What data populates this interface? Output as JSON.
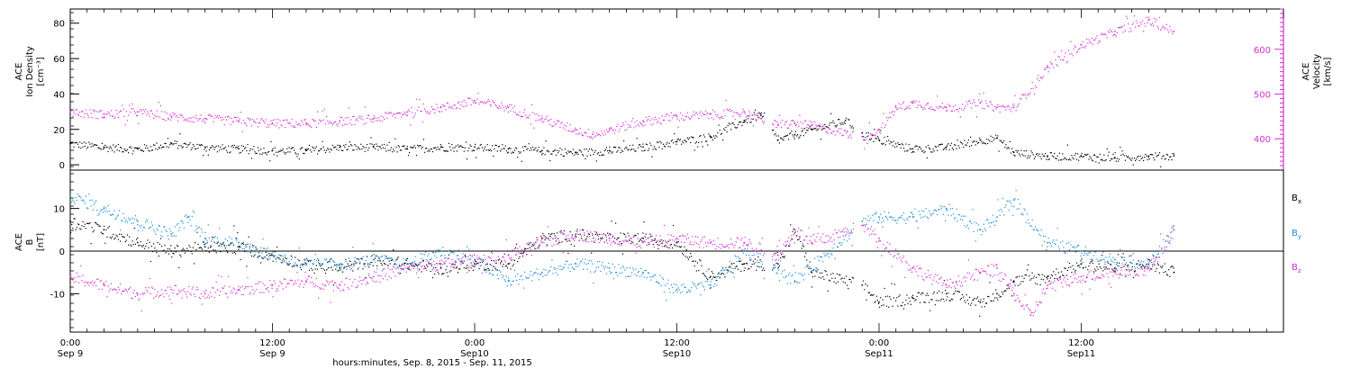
{
  "figure": {
    "xlabel": "hours:minutes, Sep. 8, 2015 - Sep. 11, 2015",
    "xticks": [
      {
        "t": 0,
        "time": "0:00",
        "date": "Sep 9"
      },
      {
        "t": 12,
        "time": "12:00",
        "date": "Sep 9"
      },
      {
        "t": 24,
        "time": "0:00",
        "date": "Sep10"
      },
      {
        "t": 36,
        "time": "12:00",
        "date": "Sep10"
      },
      {
        "t": 48,
        "time": "0:00",
        "date": "Sep11"
      },
      {
        "t": 60,
        "time": "12:00",
        "date": "Sep11"
      }
    ],
    "xlim": [
      0,
      72
    ]
  },
  "chart_data": [
    {
      "type": "scatter",
      "panel": "top",
      "left_axis": {
        "label_lines": [
          "ACE",
          "Ion Density",
          "[cm⁻³]"
        ],
        "ylim": [
          -3,
          88
        ],
        "ticks": [
          0,
          20,
          40,
          60,
          80
        ]
      },
      "right_axis": {
        "label_lines": [
          "ACE",
          "Velocity",
          "[km/s]"
        ],
        "ylim": [
          330,
          690
        ],
        "ticks": [
          400,
          500,
          600
        ],
        "color": "#d42ed4"
      },
      "series": [
        {
          "name": "Ion Density",
          "axis": "left",
          "color": "#000000",
          "points": [
            [
              0,
              12
            ],
            [
              2,
              10
            ],
            [
              4,
              9
            ],
            [
              6,
              12
            ],
            [
              8,
              10
            ],
            [
              10,
              9
            ],
            [
              12,
              8
            ],
            [
              14,
              8
            ],
            [
              16,
              10
            ],
            [
              18,
              10
            ],
            [
              20,
              9
            ],
            [
              22,
              10
            ],
            [
              24,
              10
            ],
            [
              26,
              9
            ],
            [
              28,
              8
            ],
            [
              30,
              7
            ],
            [
              32,
              8
            ],
            [
              34,
              10
            ],
            [
              36,
              13
            ],
            [
              38,
              16
            ],
            [
              40,
              25
            ],
            [
              41,
              28
            ],
            [
              42,
              14
            ],
            [
              43,
              17
            ],
            [
              44,
              20
            ],
            [
              46,
              25
            ],
            [
              47,
              18
            ],
            [
              48,
              14
            ],
            [
              50,
              9
            ],
            [
              52,
              10
            ],
            [
              54,
              14
            ],
            [
              55,
              15
            ],
            [
              56,
              7
            ],
            [
              58,
              5
            ],
            [
              60,
              5
            ],
            [
              62,
              4
            ],
            [
              64,
              5
            ],
            [
              65.5,
              5
            ]
          ]
        },
        {
          "name": "Velocity",
          "axis": "right",
          "color": "#d42ed4",
          "points": [
            [
              0,
              460
            ],
            [
              2,
              455
            ],
            [
              4,
              460
            ],
            [
              6,
              450
            ],
            [
              8,
              445
            ],
            [
              10,
              440
            ],
            [
              12,
              435
            ],
            [
              14,
              435
            ],
            [
              16,
              440
            ],
            [
              18,
              445
            ],
            [
              20,
              460
            ],
            [
              22,
              470
            ],
            [
              24,
              485
            ],
            [
              26,
              470
            ],
            [
              28,
              445
            ],
            [
              30,
              420
            ],
            [
              31,
              410
            ],
            [
              32,
              420
            ],
            [
              34,
              440
            ],
            [
              36,
              450
            ],
            [
              38,
              455
            ],
            [
              40,
              460
            ],
            [
              41,
              445
            ],
            [
              42,
              430
            ],
            [
              43,
              435
            ],
            [
              44,
              430
            ],
            [
              47,
              405
            ],
            [
              48,
              420
            ],
            [
              49,
              470
            ],
            [
              50,
              480
            ],
            [
              52,
              470
            ],
            [
              54,
              480
            ],
            [
              55,
              470
            ],
            [
              56,
              470
            ],
            [
              58,
              560
            ],
            [
              60,
              610
            ],
            [
              62,
              640
            ],
            [
              64,
              665
            ],
            [
              65.5,
              640
            ]
          ]
        }
      ]
    },
    {
      "type": "scatter",
      "panel": "bottom",
      "left_axis": {
        "label_lines": [
          "ACE",
          "B",
          "[nT]"
        ],
        "ylim": [
          -19,
          19
        ],
        "ticks": [
          -10,
          0,
          10
        ]
      },
      "zero_line": true,
      "series": [
        {
          "name": "Bx",
          "color": "#000000",
          "points": [
            [
              0,
              7
            ],
            [
              2,
              5
            ],
            [
              4,
              2
            ],
            [
              6,
              0
            ],
            [
              8,
              1
            ],
            [
              10,
              1
            ],
            [
              12,
              -1
            ],
            [
              14,
              -3
            ],
            [
              16,
              -4
            ],
            [
              18,
              -2
            ],
            [
              20,
              -3
            ],
            [
              22,
              -4
            ],
            [
              24,
              -3
            ],
            [
              26,
              -3
            ],
            [
              28,
              3
            ],
            [
              30,
              4
            ],
            [
              32,
              3
            ],
            [
              34,
              3
            ],
            [
              36,
              2
            ],
            [
              38,
              -6
            ],
            [
              40,
              -3
            ],
            [
              42,
              -3
            ],
            [
              43,
              5
            ],
            [
              44,
              -5
            ],
            [
              47,
              -8
            ],
            [
              48,
              -12
            ],
            [
              50,
              -11
            ],
            [
              52,
              -10
            ],
            [
              54,
              -12
            ],
            [
              55,
              -10
            ],
            [
              56,
              -7
            ],
            [
              58,
              -6
            ],
            [
              60,
              -3
            ],
            [
              62,
              -4
            ],
            [
              64,
              -3
            ],
            [
              65.5,
              -5
            ]
          ]
        },
        {
          "name": "By",
          "color": "#1a8adb",
          "points": [
            [
              0,
              13
            ],
            [
              2,
              10
            ],
            [
              4,
              7
            ],
            [
              6,
              4
            ],
            [
              7,
              8
            ],
            [
              8,
              3
            ],
            [
              10,
              2
            ],
            [
              12,
              -1
            ],
            [
              14,
              -3
            ],
            [
              16,
              -3
            ],
            [
              18,
              -2
            ],
            [
              20,
              -3
            ],
            [
              22,
              0
            ],
            [
              24,
              -2
            ],
            [
              26,
              -7
            ],
            [
              28,
              -5
            ],
            [
              30,
              -3
            ],
            [
              32,
              -4
            ],
            [
              34,
              -5
            ],
            [
              36,
              -9
            ],
            [
              38,
              -8
            ],
            [
              40,
              0
            ],
            [
              42,
              -4
            ],
            [
              43,
              -7
            ],
            [
              47,
              7
            ],
            [
              48,
              8
            ],
            [
              50,
              8
            ],
            [
              52,
              10
            ],
            [
              54,
              5
            ],
            [
              55,
              8
            ],
            [
              56,
              12
            ],
            [
              58,
              2
            ],
            [
              60,
              0
            ],
            [
              62,
              -2
            ],
            [
              64,
              -3
            ],
            [
              65.5,
              5
            ]
          ]
        },
        {
          "name": "Bz",
          "color": "#d42ed4",
          "points": [
            [
              0,
              -6
            ],
            [
              2,
              -8
            ],
            [
              4,
              -10
            ],
            [
              6,
              -9
            ],
            [
              8,
              -10
            ],
            [
              10,
              -9
            ],
            [
              12,
              -8
            ],
            [
              14,
              -7
            ],
            [
              16,
              -8
            ],
            [
              18,
              -6
            ],
            [
              20,
              -4
            ],
            [
              22,
              -3
            ],
            [
              24,
              -2
            ],
            [
              26,
              -1
            ],
            [
              28,
              2
            ],
            [
              30,
              4
            ],
            [
              32,
              3
            ],
            [
              34,
              2
            ],
            [
              36,
              3
            ],
            [
              38,
              2
            ],
            [
              40,
              2
            ],
            [
              42,
              -1
            ],
            [
              43,
              5
            ],
            [
              44,
              2
            ],
            [
              47,
              6
            ],
            [
              48,
              3
            ],
            [
              50,
              -4
            ],
            [
              52,
              -8
            ],
            [
              54,
              -5
            ],
            [
              55,
              -4
            ],
            [
              56,
              -10
            ],
            [
              57,
              -15
            ],
            [
              58,
              -8
            ],
            [
              60,
              -6
            ],
            [
              62,
              -5
            ],
            [
              64,
              -4
            ],
            [
              65.5,
              5
            ]
          ]
        }
      ]
    }
  ]
}
